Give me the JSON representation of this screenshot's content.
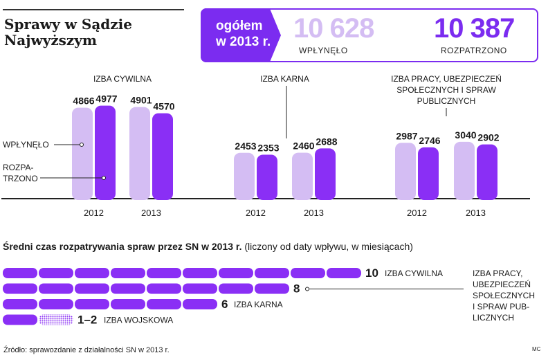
{
  "title": {
    "line1": "Sprawy w Sądzie",
    "line2": "Najwyższym"
  },
  "totals": {
    "label_line1": "ogółem",
    "label_line2": "w 2013 r.",
    "received_value": "10 628",
    "received_label": "WPŁYNĘŁO",
    "processed_value": "10 387",
    "processed_label": "ROZPATRZONO"
  },
  "colors": {
    "received": "#d4bdf3",
    "processed": "#8a2ff5",
    "accent": "#7b2cf0",
    "text": "#1a1a1a"
  },
  "legend": {
    "received": "WPŁYNĘŁO",
    "processed_line1": "ROZPA-",
    "processed_line2": "TRZONO"
  },
  "chart_data": [
    {
      "type": "bar",
      "title": "Sprawy w Sądzie Najwyższym",
      "groups": [
        {
          "label_lines": [
            "IZBA CYWILNA"
          ]
        },
        {
          "label_lines": [
            "IZBA KARNA"
          ]
        },
        {
          "label_lines": [
            "IZBA PRACY, UBEZPIECZEŃ",
            "SPOŁECZNYCH I SPRAW",
            "PUBLICZNYCH"
          ]
        }
      ],
      "categories": [
        "2012",
        "2013"
      ],
      "series": [
        {
          "name": "WPŁYNĘŁO",
          "values": [
            [
              4866,
              4901
            ],
            [
              2453,
              2460
            ],
            [
              2987,
              3040
            ]
          ]
        },
        {
          "name": "ROZPATRZONO",
          "values": [
            [
              4977,
              4570
            ],
            [
              2353,
              2688
            ],
            [
              2746,
              2902
            ]
          ]
        }
      ],
      "ylim": [
        0,
        5000
      ],
      "xlabel": "",
      "ylabel": ""
    },
    {
      "type": "bar",
      "orientation": "horizontal",
      "title": "Średni czas rozpatrywania spraw przez SN w 2013 r.",
      "subtitle": "(liczony od daty wpływu, w miesiącach)",
      "unit": "miesiące",
      "bars": [
        {
          "label": "IZBA CYWILNA",
          "value": 10,
          "value_label": "10"
        },
        {
          "label": "IZBA PRACY, UBEZPIECZEŃ SPOŁECZNYCH I SPRAW PUBLICZNYCH",
          "label_lines": [
            "IZBA PRACY,",
            "UBEZPIECZEŃ",
            "SPOŁECZNYCH",
            "I SPRAW PUB-",
            "LICZNYCH"
          ],
          "value": 8,
          "value_label": "8"
        },
        {
          "label": "IZBA KARNA",
          "value": 6,
          "value_label": "6"
        },
        {
          "label": "IZBA WOJSKOWA",
          "value": 2,
          "value_min": 1,
          "value_label": "1–2"
        }
      ]
    }
  ],
  "source": "Źródło: sprawozdanie z działalności SN w 2013 r.",
  "author": "MC"
}
